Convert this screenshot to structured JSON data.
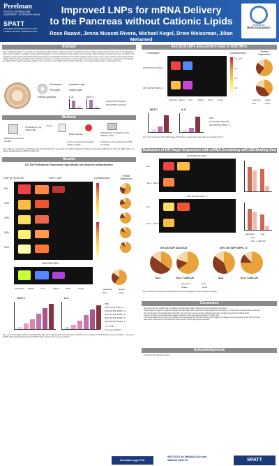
{
  "header": {
    "logo_left_name": "Perelman",
    "logo_left_sub": "SCHOOL OF MEDICINE\nUNIVERSITY of PENNSYLVANIA",
    "logo_left_2": "SPATT",
    "logo_left_2_sub": "SYSTEMS PHARMACOLOGY AND TRANSLATIONAL THERAPEUTICS",
    "title_line1": "Improved LNPs for mRNA Delivery",
    "title_line2": "to the Pancreas without Cationic Lipids",
    "authors": "Rose Razavi, Jenna Muscat-Rivera, Michael Kegel, Drew Weissman, Jilian Melamed",
    "logo_right_line1": "Institute for",
    "logo_right_line2": "RNA Innovation"
  },
  "sections": {
    "abstract": "Abstract",
    "methods": "Methods",
    "results": "Results",
    "conclusion": "Conclusion",
    "acknowledgments": "Acknowledgments"
  },
  "abstract": {
    "text": "Type 1 Diabetes (T1D) is an autoimmune disease that affects about 2 million Americans in which the immune system attacks pancreatic beta cells. This dysfunction halts insulin production, leading to blood sugar dysregulation. Current treatments involve lifelong insulin therapy, which manages symptoms but does not address the underlying autoimmunity. Monoclonal antibody therapies nonspecifically suppress immune cells, holding autoimmunity, but can cause systemic immunosuppression. mRNA-LNPs have the potential to induce tolerizing responses in autoimmune disease models without compromising the immune system. Our group has developed an mRNA-LNP to enable pancreatic delivery. Here, we have a new mRNA-LNP formulation that does not increase inflammation in noninflamed mice..."
  },
  "abstract_fig": {
    "labels": [
      "Cholesterol",
      "Ionizable Lipid",
      "PEG-lipid",
      "Helper Lipid",
      "mRNA Cytokines",
      "IL-6",
      "MCP-1"
    ],
    "legend": [
      "5% DOTAP 4A3-SC8",
      "0% DOTAP 4A3-SC8"
    ]
  },
  "methods": {
    "steps": [
      "Microfluidic Production of LNPs",
      "IP injection of 5 µg mRNA-LNPs",
      "4 hours",
      "Blood Collection",
      "Quantification of Cytokines using Multiplex assay",
      "In Vivo Luminescence Imaging (IVIS) of organs",
      "Luciferase or Cre expression by IVIS or imaging"
    ],
    "caption": "Fig 1. LNPs were produced by microfluidic mixing and characterized by size, charge and mRNA encapsulation efficiency. Intraperitoneal (IP) injection of 5 µg of mRNA-LNPs were injected intraperitoneally in C57BL6 or NOD mice."
  },
  "results_left": {
    "title": "DOTAP Enhances Pancreatic Specificity but Induces Inflammation",
    "col_a": "LNP w/ % DOTAP",
    "col_b": "DSPC_LNP",
    "col_c": "Luminescence",
    "col_d": "Protein Expression",
    "rows": [
      "0%",
      "10%",
      "20%",
      "30%",
      "40%"
    ],
    "sub": "4A3-SC8 LNPs",
    "organs": [
      "Pancreas",
      "Spleen",
      "Liver",
      "Kidney",
      "Heart",
      "Lungs"
    ],
    "pie_legend": [
      "pancreas",
      "liver",
      "spleen",
      "lungs"
    ],
    "chart1_title": "MCP-1",
    "chart2_title": "IL-6",
    "chart_legend": [
      "PBS",
      "0% DOTAP DSPC_3",
      "10% DOTAP DSPC_3",
      "20% DOTAP DSPC_3",
      "30% DOTAP DSPC_3",
      "40% DOTAP DSPC_3"
    ],
    "stats": [
      "* P < 0.05",
      "One-way ANOVA"
    ],
    "caption": "Fig 2. A) In IVIS imaging, DOTAP-containing DSPC_LNPs show enhanced pancreatic specificity, but DOTAP is not necessary in 4A3-SC8. B) The levels of cytokines... increase in DOTAP LNPs suggesting that increasing DOTAP induces greater levels of serum cytokines."
  },
  "results_right_top": {
    "title": "4A3-SC8 LNPs also perform best in NOD Mice",
    "col_a": "Formulation",
    "col_b": "Luminescence",
    "col_c": "Protein Expression",
    "rows": [
      "0% DOTAP 4A3-SC8",
      "30% DOTAP DSPC_3"
    ],
    "ticks": [
      "6.0 x 10⁸",
      "4.0",
      "2.0",
      "0.5"
    ],
    "organs": [
      "Pancreas",
      "Spleen",
      "Liver",
      "Kidney",
      "Heart",
      "Lungs"
    ],
    "pie_legend": [
      "pancreas",
      "liver",
      "spleen",
      "lungs"
    ],
    "chart1_title": "MCP-1",
    "chart2_title": "IL-6",
    "chart_legend": [
      "PBS",
      "0% DOTAP 4A3-SC8",
      "30% DOTAP DSPC_3"
    ],
    "caption": "Fig 3. The top left panel shows IVIS images of NOD mouse organs when treated with Luc formulated into 0.2 ..."
  },
  "results_right_mid": {
    "title": "Reduction of Off-Target Expression with mRNA Containing miR-122 Binding Seq",
    "row_labels": [
      "fLuc",
      "fLuc + miR-122",
      "fLuc",
      "fLuc + miR-122"
    ],
    "group_a": "0% DOTAP 4A3-SC8",
    "group_b": "30% DOTAP DSPC_3",
    "bars_legend": [
      "fLuc",
      "fLuc + miR-122"
    ],
    "bar_axis": [
      "pancreas",
      "liver"
    ],
    "bottom_group_a": "0% DOTAP 4A3-SC8",
    "bottom_group_b": "30% DOTAP DSPC_3",
    "pie_labels": [
      "fLuc",
      "fLuc + miR-122",
      "fLuc",
      "fLuc + miR-122"
    ],
    "pie_legend": [
      "pancreas",
      "liver",
      "spleen",
      "lungs"
    ],
    "caption": "Fig 4. miR-122 is a hepatocyte-specific miRNA that can be leveraged to reduce off-target expression..."
  },
  "conclusion": {
    "bullets": [
      "We have found an mRNA-LNP formulation with low inflammatory effects and high pancreatic expression.",
      "It eliminates the need for positively charged DOTAP helper lipid, which has a dose-dependent increase in IL-6 and MCP-1 inflammatory cytokines.",
      "The incorporation of ionizable lipid, 4A3-SC8, that not only improves delivery efficiency but also maintains low levels of inflammation.",
      "Further, we have shown that the formulation retains its high pancreatic specificity in NOD mice.",
      "The incorporation of miR-122 in the mRNA-LNP compared at 0% DOTAP and 4A3-SC8 reduced off-target protein expression in the liver by 4-fold.",
      "Next steps would be to incorporate with NOD-specific mRNA tolerogenic therapies."
    ]
  },
  "acknowledgments": {
    "text": "Funded by the following sources:"
  },
  "footer": {
    "logo1": "Breakthrough T1D",
    "logo2": "INSTITUTE for IMMUNOLOGY and IMMUNE HEALTH",
    "logo3": "SPATT"
  },
  "colors": {
    "header": "#1f4e9a",
    "section_bar": "#8b8b8b",
    "pancreas": "#e8a23a",
    "liver": "#8a3a20",
    "spleen": "#f2d7a8",
    "lungs": "#c9c9c9"
  }
}
